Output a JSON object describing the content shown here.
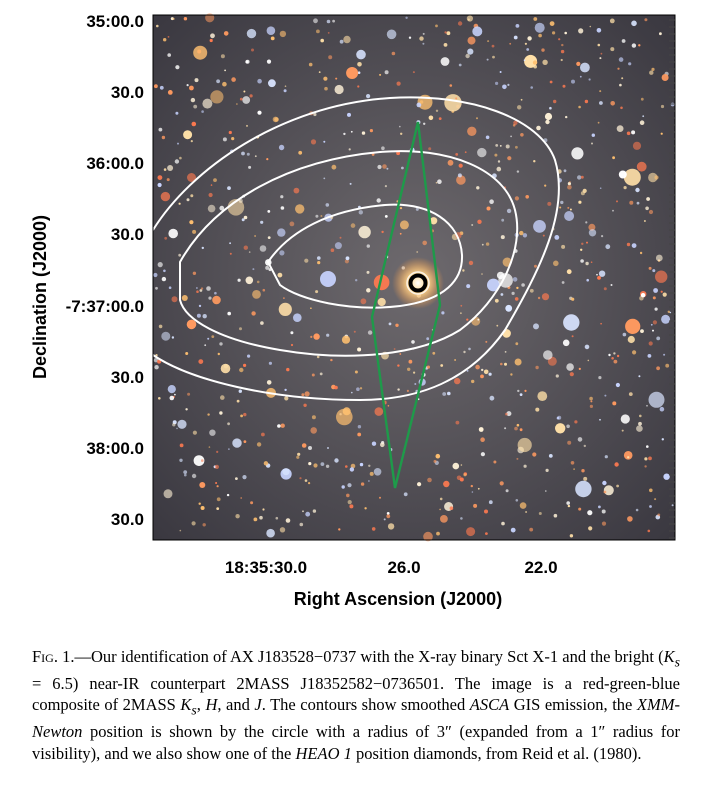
{
  "figure": {
    "y_ticks": [
      "35:00.0",
      "30.0",
      "36:00.0",
      "30.0",
      "-7:37:00.0",
      "30.0",
      "38:00.0",
      "30.0"
    ],
    "x_ticks": [
      "18:35:30.0",
      "26.0",
      "22.0"
    ],
    "y_label": "Declination (J2000)",
    "x_label": "Right Ascension (J2000)"
  },
  "caption": {
    "label": "Fig. 1.",
    "dash": "—",
    "t1": "Our identification of AX J183528−0737 with the X-ray binary Sct X-1 and the bright (",
    "ks_sym": "K",
    "ks_sub": "s",
    "t2": " = 6.5) near-IR counterpart 2MASS J18352582−0736501. The image is a red-green-blue composite of 2MASS ",
    "ks2_sym": "K",
    "ks2_sub": "s",
    "t3": ", ",
    "h": "H",
    "t4": ", and ",
    "j": "J",
    "t5": ". The contours show smoothed ",
    "asca": "ASCA",
    "t6": " GIS emission, the ",
    "xmm": "XMM-Newton",
    "t7": " position is shown by the circle with a radius of 3″ (expanded from a 1″ radius for visibility), and we also show one of the ",
    "heao": "HEAO 1",
    "t8": " position diamonds, from Reid et al. (1980)."
  },
  "colors": {
    "contour": "#ffffff",
    "diamond": "#1e9a4a",
    "circle": "#000000"
  }
}
